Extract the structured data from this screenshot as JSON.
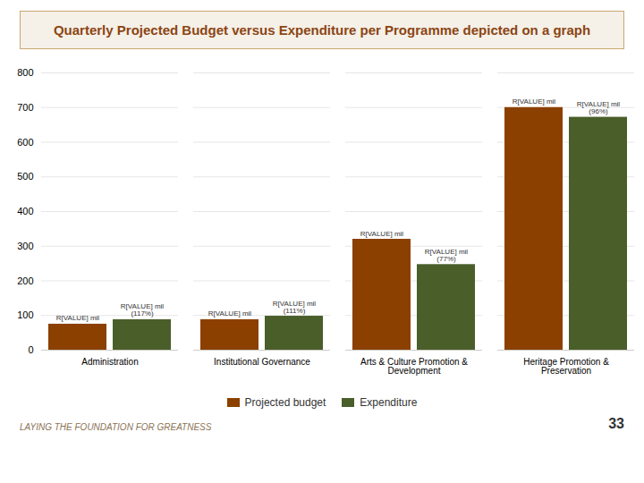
{
  "chart_data": {
    "type": "bar",
    "title": "Quarterly Projected Budget versus Expenditure per Programme depicted on a graph",
    "categories": [
      "Administration",
      "Institutional Governance",
      "Arts & Culture Promotion &\nDevelopment",
      "Heritage Promotion &  Preservation"
    ],
    "series": [
      {
        "name": "Projected budget",
        "color": "#8B4000",
        "values": [
          75,
          88,
          320,
          700
        ],
        "value_labels": [
          "R[VALUE] mil",
          "R[VALUE] mil",
          "R[VALUE] mil",
          "R[VALUE] mil"
        ]
      },
      {
        "name": "Expenditure",
        "color": "#4a5e2a",
        "values": [
          88,
          98,
          247,
          672
        ],
        "value_labels": [
          "R[VALUE] mil (117%)",
          "R[VALUE] mil (111%)",
          "R[VALUE] mil (77%)",
          "R[VALUE] mil (96%)"
        ]
      }
    ],
    "ylim": [
      0,
      800
    ],
    "yticks": [
      0,
      100,
      200,
      300,
      400,
      500,
      600,
      700,
      800
    ],
    "grid": true,
    "legend": "bottom",
    "data_labels": true,
    "annotations": [
      "LAYING THE FOUNDATION FOR GREATNESS",
      "33"
    ]
  }
}
